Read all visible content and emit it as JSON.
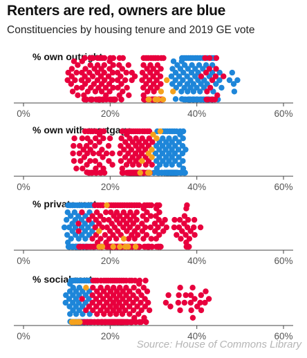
{
  "header": {
    "title": "Renters are red, owners are blue",
    "subtitle": "Constituencies by housing tenure and 2019 GE vote"
  },
  "source": "Source: House of Commons Library",
  "colors": {
    "red": "#e8003d",
    "blue": "#1e86d9",
    "orange": "#f5a11d",
    "grey": "#8a8a96",
    "axis": "#444444"
  },
  "chart_data": [
    {
      "type": "scatter",
      "title": "% own outright",
      "xlim": [
        0,
        60
      ],
      "ticks": [
        "0%",
        "20%",
        "40%",
        "60%"
      ],
      "groups": [
        {
          "color": "red",
          "range": [
            8,
            27
          ],
          "count": 120
        },
        {
          "color": "red",
          "range": [
            27,
            33
          ],
          "count": 90
        },
        {
          "color": "blue",
          "range": [
            33,
            46
          ],
          "count": 140
        },
        {
          "color": "red",
          "range": [
            40,
            48
          ],
          "count": 18
        },
        {
          "color": "orange",
          "range": [
            27,
            38
          ],
          "count": 9
        },
        {
          "color": "blue",
          "range": [
            46,
            51
          ],
          "count": 5
        }
      ]
    },
    {
      "type": "scatter",
      "title": "% own with mortgage",
      "xlim": [
        0,
        60
      ],
      "ticks": [
        "0%",
        "20%",
        "40%",
        "60%"
      ],
      "groups": [
        {
          "color": "red",
          "range": [
            11,
            22
          ],
          "count": 60
        },
        {
          "color": "red",
          "range": [
            22,
            30
          ],
          "count": 180
        },
        {
          "color": "blue",
          "range": [
            30,
            38
          ],
          "count": 150
        },
        {
          "color": "orange",
          "range": [
            24,
            36
          ],
          "count": 10
        }
      ]
    },
    {
      "type": "scatter",
      "title": "% private rent",
      "xlim": [
        0,
        60
      ],
      "ticks": [
        "0%",
        "20%",
        "40%",
        "60%"
      ],
      "groups": [
        {
          "color": "blue",
          "range": [
            9,
            17
          ],
          "count": 110
        },
        {
          "color": "red",
          "range": [
            12,
            34
          ],
          "count": 260
        },
        {
          "color": "red",
          "range": [
            34,
            41
          ],
          "count": 25
        },
        {
          "color": "orange",
          "range": [
            13,
            27
          ],
          "count": 10
        }
      ]
    },
    {
      "type": "scatter",
      "title": "% social rent",
      "xlim": [
        0,
        60
      ],
      "ticks": [
        "0%",
        "20%",
        "40%",
        "60%"
      ],
      "groups": [
        {
          "color": "blue",
          "range": [
            9,
            16
          ],
          "count": 150
        },
        {
          "color": "red",
          "range": [
            12,
            30
          ],
          "count": 230
        },
        {
          "color": "red",
          "range": [
            30,
            47
          ],
          "count": 22
        },
        {
          "color": "orange",
          "range": [
            10,
            16
          ],
          "count": 10
        }
      ]
    }
  ]
}
